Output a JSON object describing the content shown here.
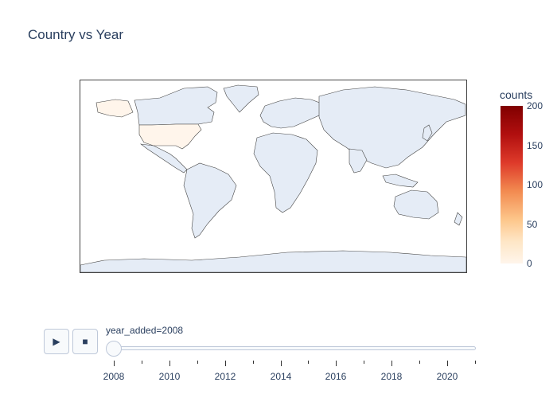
{
  "title": "Country vs Year",
  "colorbar": {
    "title": "counts",
    "ticks": [
      "200",
      "150",
      "100",
      "50",
      "0"
    ],
    "colors": [
      "#fff5eb",
      "#fee6c6",
      "#fdc68a",
      "#f28a50",
      "#de3a2a",
      "#b10f0f",
      "#800000"
    ]
  },
  "map": {
    "land_color": "#e5ecf6",
    "highlighted": [
      {
        "name": "United States",
        "value": 4,
        "color": "#fff5eb"
      }
    ]
  },
  "controls": {
    "play_icon": "play-icon",
    "play_glyph": "▶",
    "stop_icon": "stop-icon",
    "stop_glyph": "■"
  },
  "slider": {
    "label": "year_added=2008",
    "current": 2008,
    "min": 2008,
    "max": 2021,
    "tick_labels": [
      "2008",
      "2010",
      "2012",
      "2014",
      "2016",
      "2018",
      "2020"
    ]
  }
}
